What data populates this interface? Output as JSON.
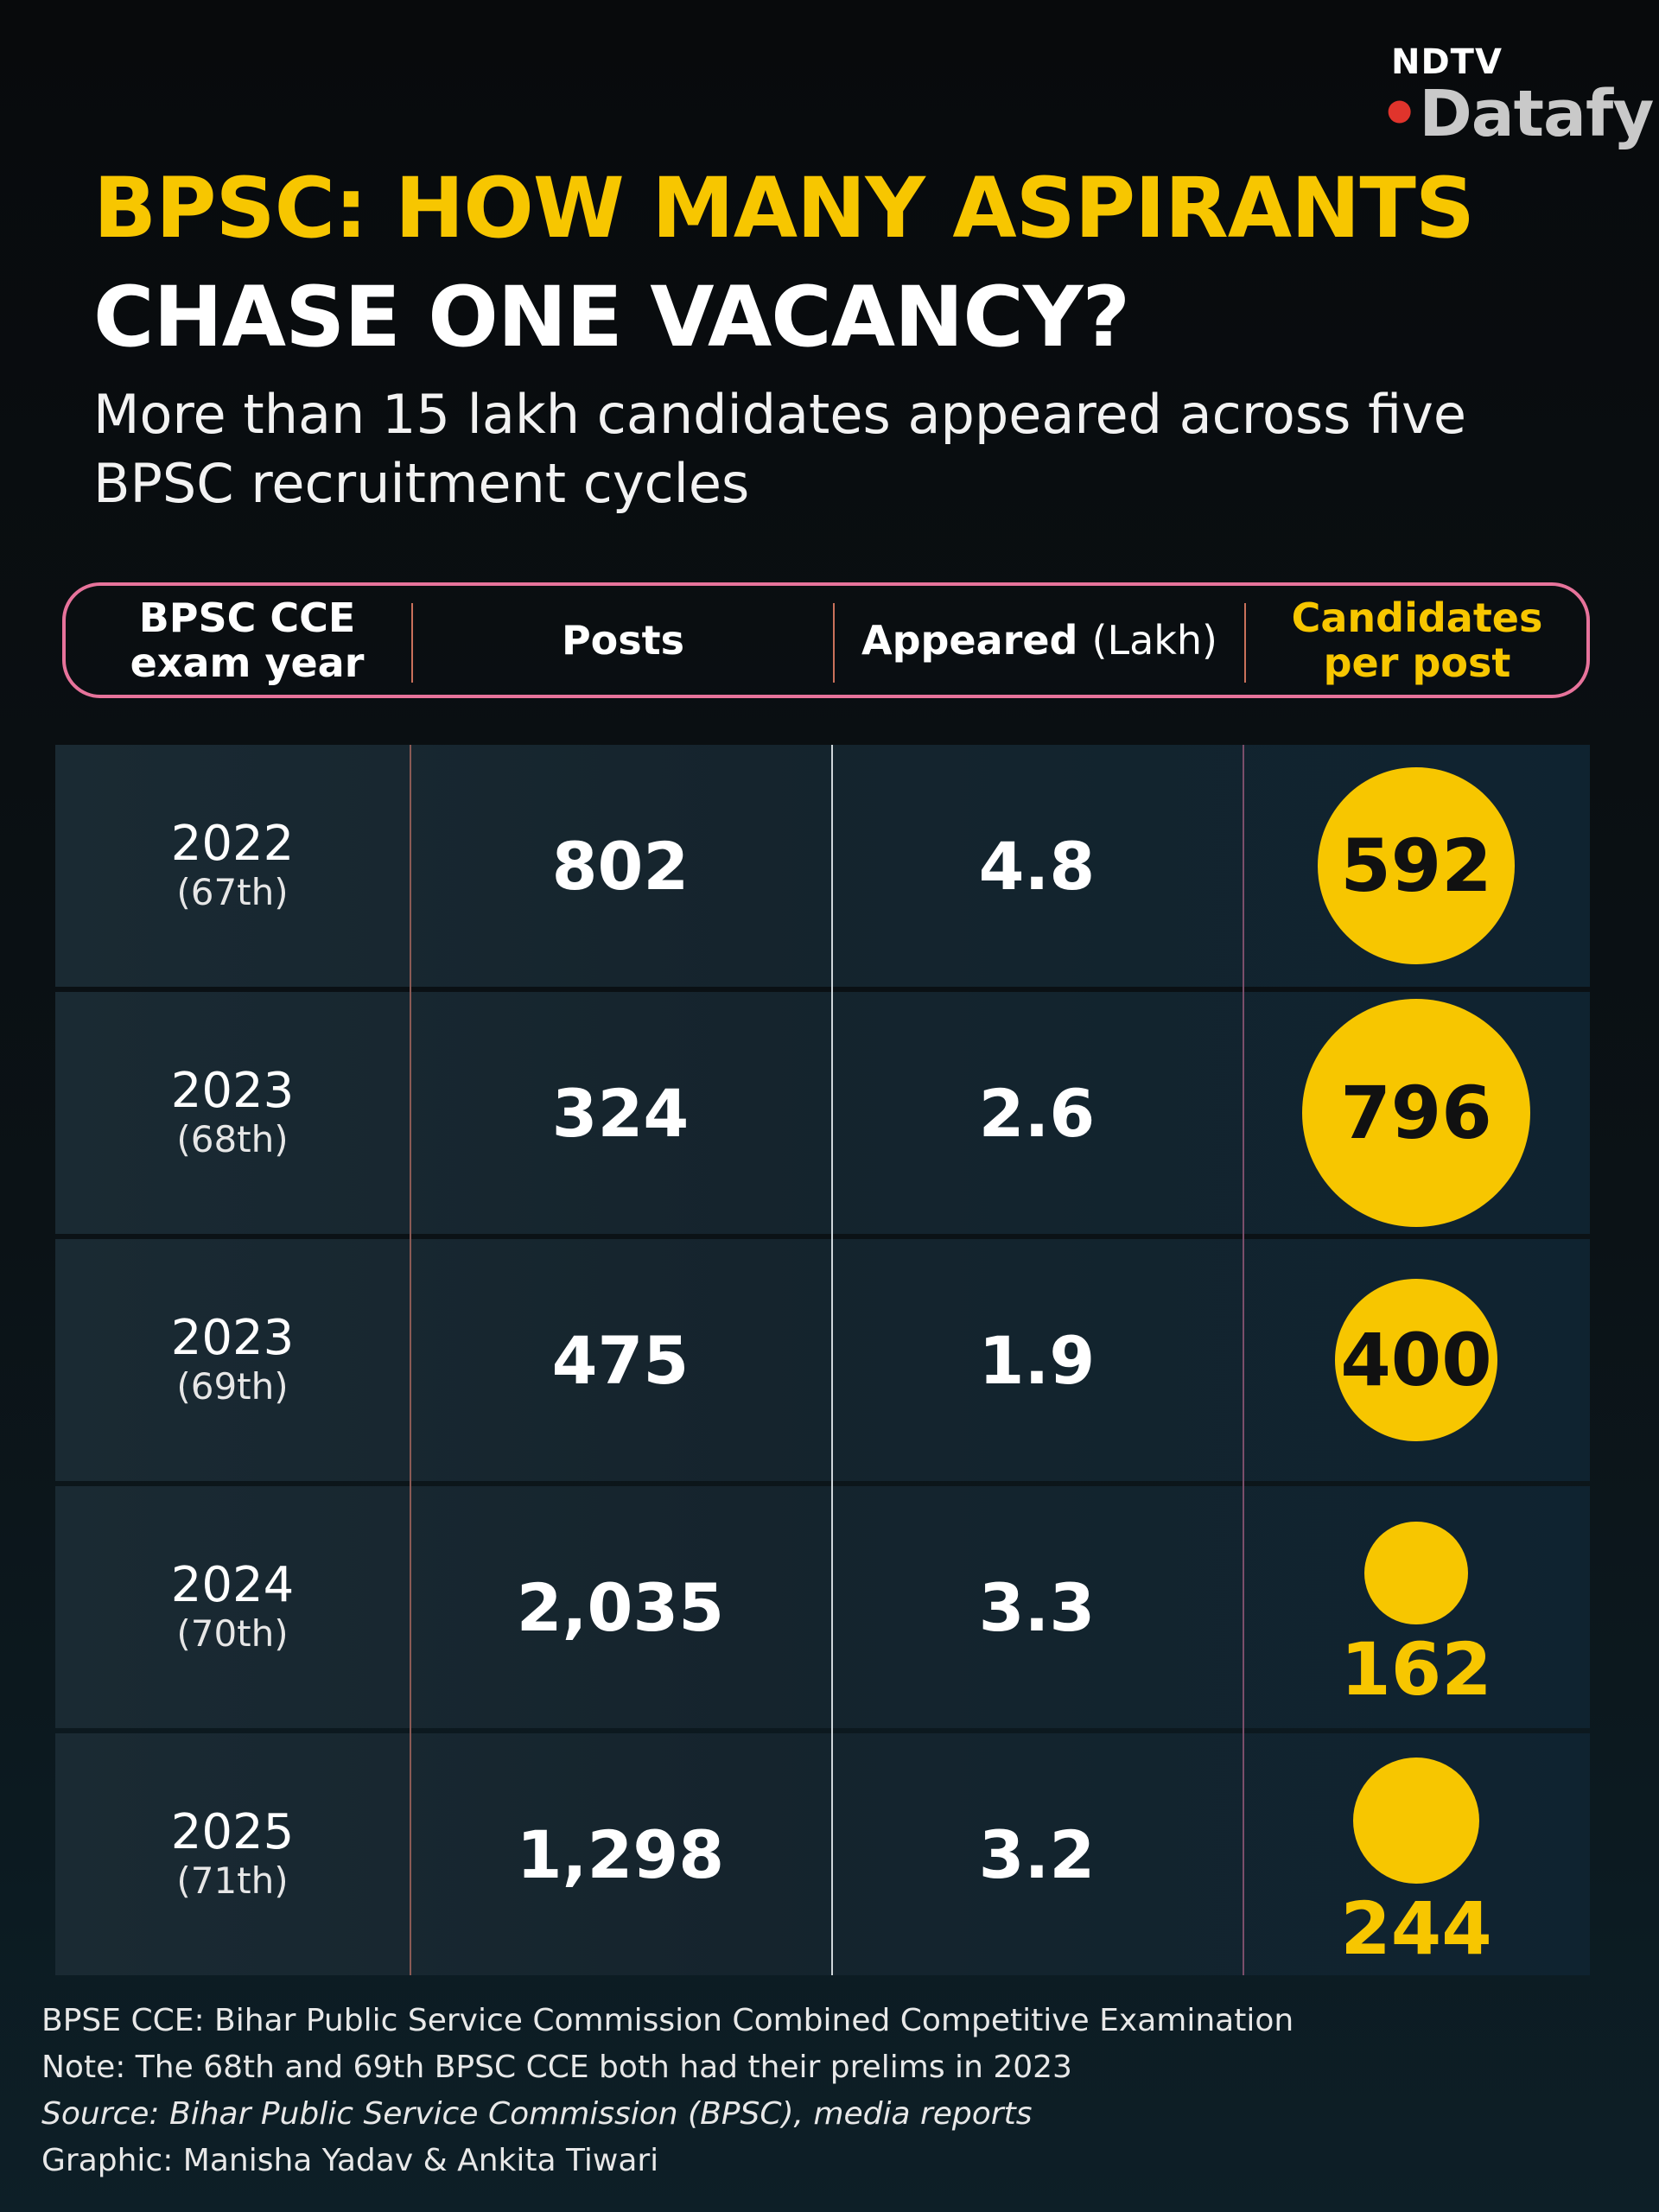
{
  "brand": {
    "line1": "NDTV",
    "line2_dot": "•",
    "line2": "Datafy"
  },
  "title": {
    "line1": "BPSC: HOW MANY ASPIRANTS",
    "line2": "CHASE ONE VACANCY?"
  },
  "subtitle": "More than 15 lakh candidates appeared across five BPSC recruitment cycles",
  "header": {
    "col1": "BPSC CCE exam year",
    "col2": "Posts",
    "col3_bold": "Appeared",
    "col3_light": "(Lakh)",
    "col4": "Candidates per post"
  },
  "colors": {
    "accent": "#f7c600",
    "header_border": "#e7739b",
    "separator": "#c9705a"
  },
  "chart_data": {
    "type": "table",
    "columns": [
      "BPSC CCE exam year",
      "Posts",
      "Appeared (Lakh)",
      "Candidates per post"
    ],
    "rows": [
      {
        "year": "2022",
        "edition": "(67th)",
        "posts": "802",
        "appeared": "4.8",
        "per_post": "592",
        "per_post_value": 592
      },
      {
        "year": "2023",
        "edition": "(68th)",
        "posts": "324",
        "appeared": "2.6",
        "per_post": "796",
        "per_post_value": 796
      },
      {
        "year": "2023",
        "edition": "(69th)",
        "posts": "475",
        "appeared": "1.9",
        "per_post": "400",
        "per_post_value": 400
      },
      {
        "year": "2024",
        "edition": "(70th)",
        "posts": "2,035",
        "appeared": "3.3",
        "per_post": "162",
        "per_post_value": 162
      },
      {
        "year": "2025",
        "edition": "(71th)",
        "posts": "1,298",
        "appeared": "3.2",
        "per_post": "244",
        "per_post_value": 244
      }
    ]
  },
  "footer": {
    "line1": "BPSE CCE: Bihar Public Service Commission Combined Competitive Examination",
    "line2": "Note: The 68th and 69th BPSC CCE both had their prelims in 2023",
    "line3": "Source: Bihar Public Service Commission (BPSC), media reports",
    "line4": "Graphic: Manisha Yadav & Ankita Tiwari"
  }
}
